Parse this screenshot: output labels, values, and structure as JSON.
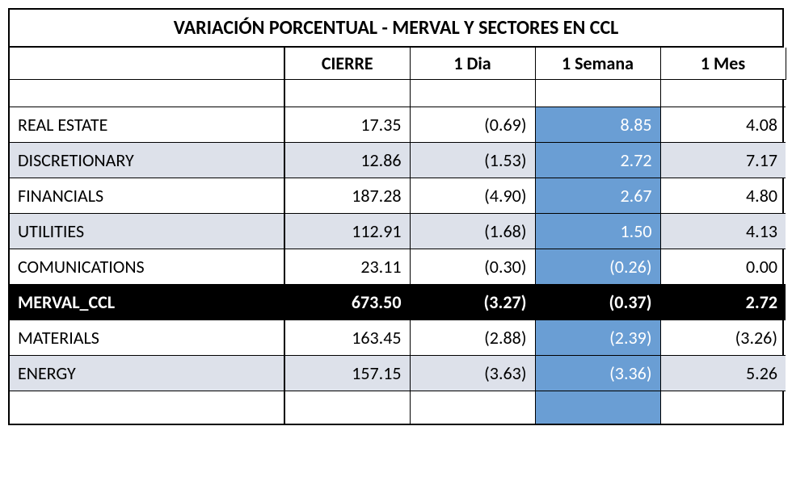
{
  "title": "VARIACIÓN PORCENTUAL  - MERVAL Y SECTORES EN CCL",
  "columns": [
    "CIERRE",
    "1 Dia",
    "1 Semana",
    "1 Mes"
  ],
  "highlight_column_index": 2,
  "colors": {
    "alt_row_bg": "#dde1ea",
    "highlight_bg": "#6a9ed4",
    "highlight_fg": "#ffffff",
    "merval_bg": "#000000",
    "merval_fg": "#ffffff",
    "border": "#000000",
    "bg": "#ffffff"
  },
  "font": {
    "title_size_pt": 18,
    "header_size_pt": 16,
    "cell_size_pt": 16,
    "family": "Calibri"
  },
  "rows": [
    {
      "name": "REAL ESTATE",
      "alt": false,
      "merval": false,
      "cells": [
        "17.35",
        "(0.69)",
        "8.85",
        "4.08"
      ]
    },
    {
      "name": "DISCRETIONARY",
      "alt": true,
      "merval": false,
      "cells": [
        "12.86",
        "(1.53)",
        "2.72",
        "7.17"
      ]
    },
    {
      "name": "FINANCIALS",
      "alt": false,
      "merval": false,
      "cells": [
        "187.28",
        "(4.90)",
        "2.67",
        "4.80"
      ]
    },
    {
      "name": "UTILITIES",
      "alt": true,
      "merval": false,
      "cells": [
        "112.91",
        "(1.68)",
        "1.50",
        "4.13"
      ]
    },
    {
      "name": "COMUNICATIONS",
      "alt": false,
      "merval": false,
      "cells": [
        "23.11",
        "(0.30)",
        "(0.26)",
        "0.00"
      ]
    },
    {
      "name": "MERVAL_CCL",
      "alt": false,
      "merval": true,
      "cells": [
        "673.50",
        "(3.27)",
        "(0.37)",
        "2.72"
      ]
    },
    {
      "name": "MATERIALS",
      "alt": false,
      "merval": false,
      "cells": [
        "163.45",
        "(2.88)",
        "(2.39)",
        "(3.26)"
      ]
    },
    {
      "name": "ENERGY",
      "alt": true,
      "merval": false,
      "cells": [
        "157.15",
        "(3.63)",
        "(3.36)",
        "5.26"
      ]
    }
  ]
}
